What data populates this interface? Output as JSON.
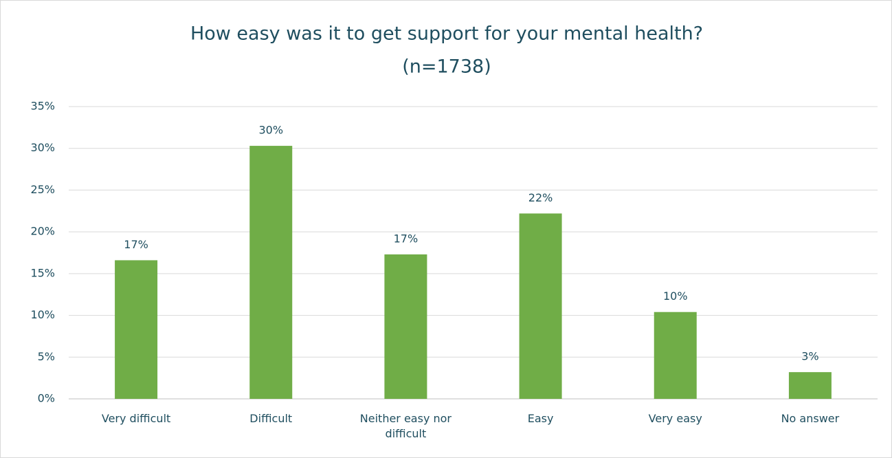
{
  "chart_data": {
    "type": "bar",
    "title": [
      "How easy was it to get support for your mental health?",
      "(n=1738)"
    ],
    "categories": [
      "Very difficult",
      "Difficult",
      "Neither easy nor difficult",
      "Easy",
      "Very easy",
      "No answer"
    ],
    "values": [
      16.6,
      30.3,
      17.3,
      22.2,
      10.4,
      3.2
    ],
    "value_labels": [
      "17%",
      "30%",
      "17%",
      "22%",
      "10%",
      "3%"
    ],
    "color": "#70ad47",
    "ylim": [
      0,
      35
    ],
    "yticks": [
      {
        "value": 0,
        "label": "0%"
      },
      {
        "value": 5,
        "label": "5%"
      },
      {
        "value": 10,
        "label": "10%"
      },
      {
        "value": 15,
        "label": "15%"
      },
      {
        "value": 20,
        "label": "20%"
      },
      {
        "value": 25,
        "label": "25%"
      },
      {
        "value": 30,
        "label": "30%"
      },
      {
        "value": 35,
        "label": "35%"
      }
    ],
    "grid": true
  }
}
